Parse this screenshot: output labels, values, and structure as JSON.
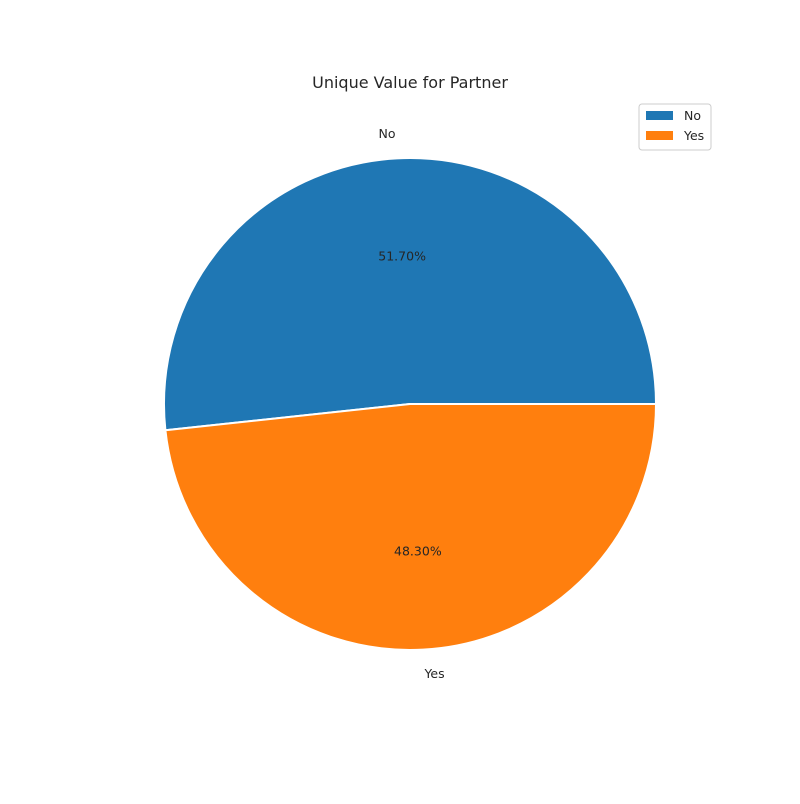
{
  "chart_data": {
    "type": "pie",
    "title": "Unique Value for Partner",
    "labels": [
      "No",
      "Yes"
    ],
    "values": [
      51.7,
      48.3
    ],
    "percent_labels": [
      "51.70%",
      "48.30%"
    ],
    "colors": [
      "#1f77b4",
      "#ff7f0e"
    ],
    "legend": {
      "placement": "top-right",
      "entries": [
        "No",
        "Yes"
      ]
    }
  }
}
